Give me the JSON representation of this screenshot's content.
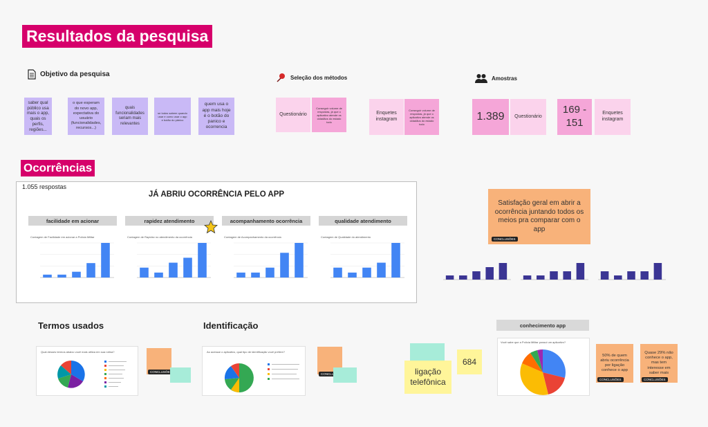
{
  "page": {
    "title": "Resultados da pesquisa",
    "section_ocorrencias": "Ocorrências"
  },
  "objetivo": {
    "label": "Objetivo da pesquisa",
    "notes": [
      "saber qual público usa mais o app, quais os perfis, regiões...",
      "o que esperam do novo app, expectativa do usuário (funcionalidades, recursos...)",
      "quais funcionalidades seriam mais relevantes",
      "se todos sabem quando usar e como usar o app e botão do pânico",
      "quem usa o app mais hoje é o botão do panico e ocorrencia"
    ]
  },
  "metodos": {
    "label": "Seleção dos métodos",
    "questionario": "Questionário",
    "questionario_desc": "Conseguir volume de respostas, já que o aplicativo atende os cidadãos do estado todo",
    "enquetes": "Enquetes instagram",
    "enquetes_desc": "Conseguir volume de respostas, já que o aplicativo atende os cidadãos do estado todo"
  },
  "amostras": {
    "label": "Amostras",
    "count1": "1.389",
    "label1": "Questionário",
    "count2": "169 - 151",
    "label2": "Enquetes instagram"
  },
  "ocorrencia_panel": {
    "responses": "1.055 respostas",
    "title": "JÁ ABRIU OCORRÊNCIA PELO APP",
    "charts": [
      {
        "header": "facilidade em acionar",
        "caption": "Contagem de Facilidade em acionar a Polícia Militar",
        "values": [
          1,
          1,
          2,
          5,
          12
        ]
      },
      {
        "header": "rapidez atendimento",
        "caption": "Contagem de Rapidez no atendimento da ocorrência",
        "values": [
          2,
          1,
          3,
          4,
          7
        ]
      },
      {
        "header": "acompanhamento ocorrência",
        "caption": "Contagem de Acompanhamento da ocorrência",
        "values": [
          1,
          1,
          2,
          5,
          7
        ]
      },
      {
        "header": "qualidade atendimento",
        "caption": "Contagem de Qualidade do atendimento",
        "values": [
          2,
          1,
          2,
          3,
          7
        ]
      }
    ]
  },
  "satisfacao": {
    "note": "Satisfação geral em abrir a ocorrência juntando todos os meios pra comparar com o app",
    "tag": "CONCLUSÕES",
    "charts": [
      {
        "values": [
          1,
          1,
          2,
          3,
          4
        ]
      },
      {
        "values": [
          1,
          1,
          2,
          2,
          4
        ]
      },
      {
        "values": [
          2,
          1,
          2,
          2,
          4
        ]
      }
    ]
  },
  "termos": {
    "title": "Termos usados",
    "chart_title": "Qual desses termos abaixo você mais utiliza em sua rotina?",
    "tag": "CONCLUSÕES"
  },
  "identificacao": {
    "title": "Identificação",
    "chart_title": "Ao acessar o aplicativo, qual tipo de identificação você prefere?",
    "tag": "CONCLUSÕES"
  },
  "conhecimento": {
    "header": "conhecimento app",
    "chart_title": "Você sabe que a Polícia Militar possui um aplicativo?",
    "yellow_label": "ligação telefônica",
    "yellow_count": "684",
    "note1": "50% de quem abriu ocorrência por ligação conhece o app",
    "note2": "Quase 29% não conhece o app, mas tem interesse em saber mais",
    "tag": "CONCLUSÕES"
  },
  "colors": {
    "accent": "#d6006b",
    "bar_blue": "#4285f4",
    "bar_navy": "#3b3594"
  }
}
